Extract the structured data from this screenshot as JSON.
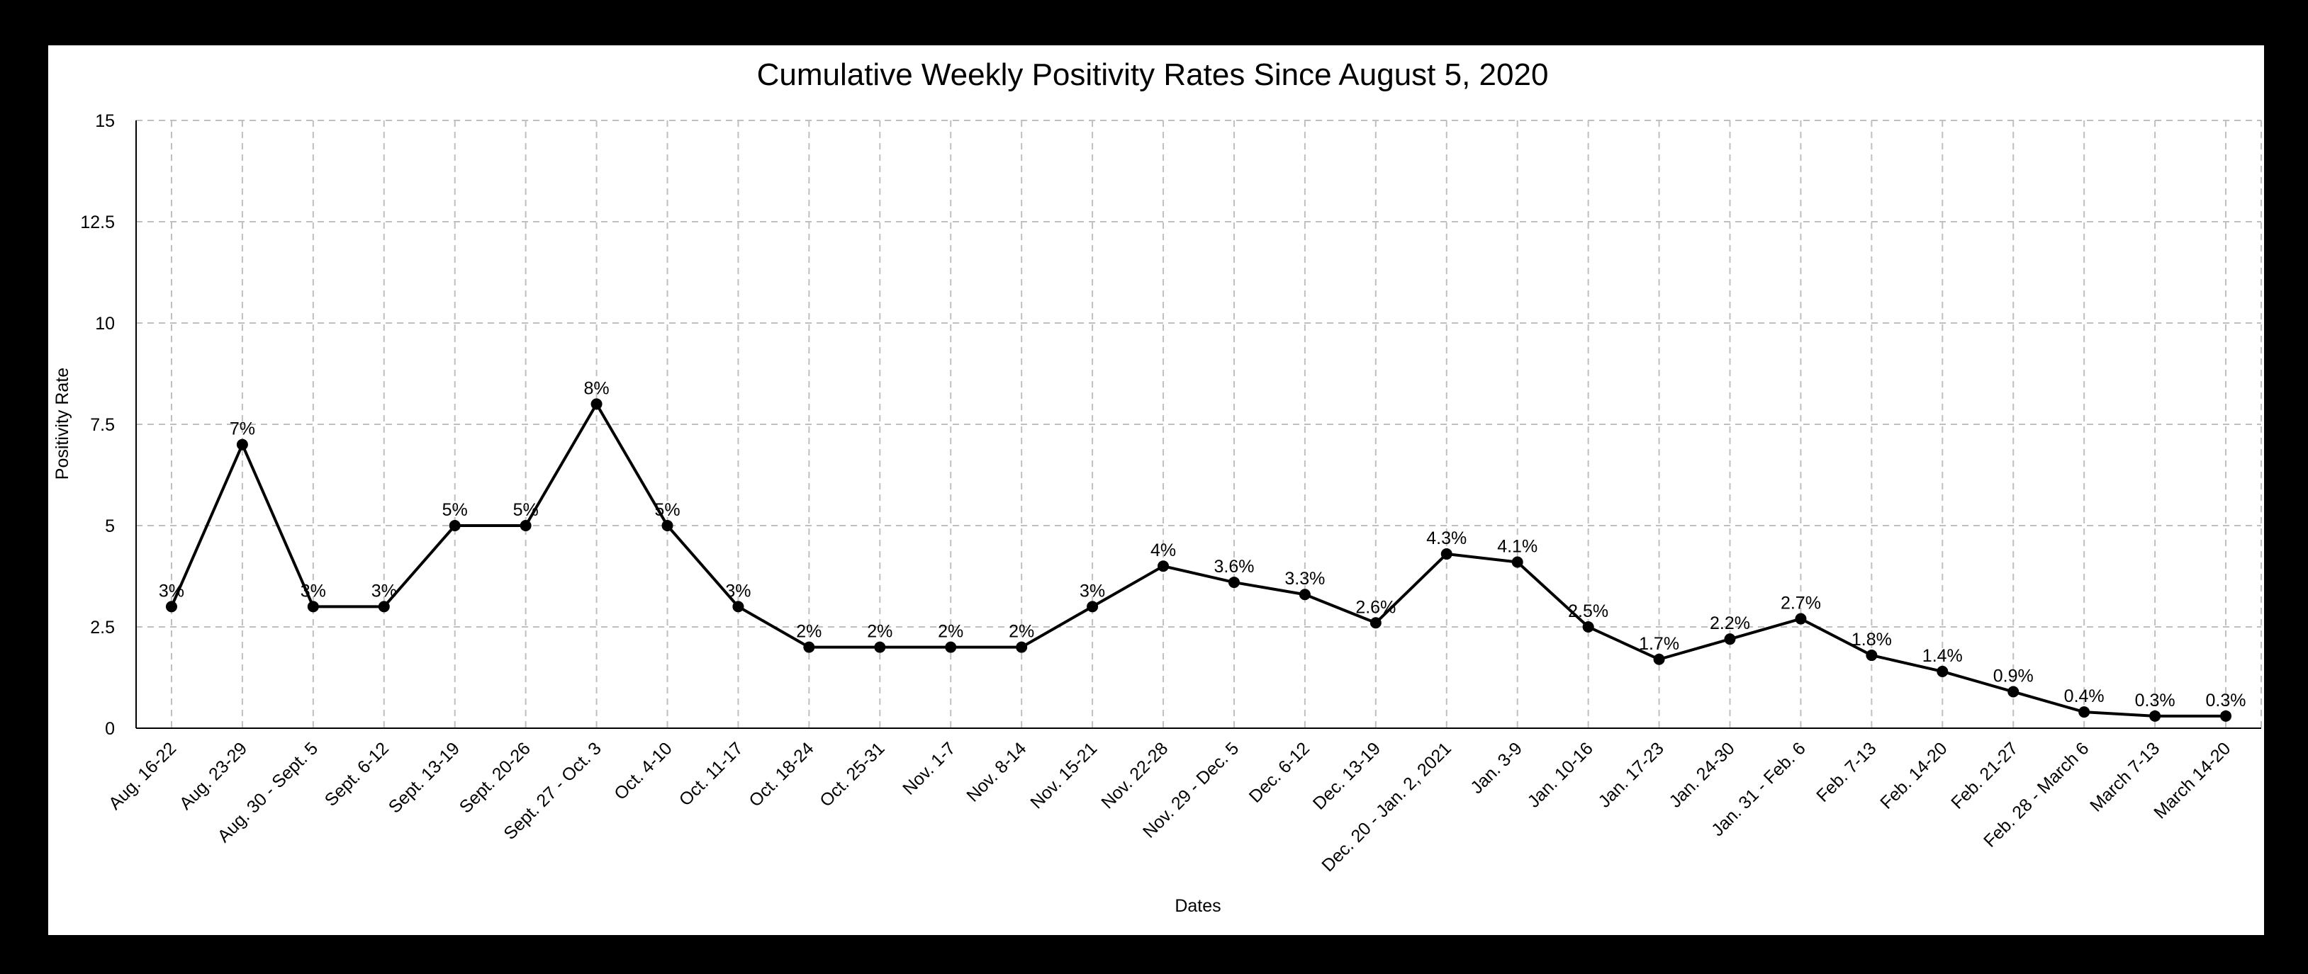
{
  "chart_data": {
    "type": "line",
    "title": "Cumulative Weekly Positivity Rates Since August 5, 2020",
    "xlabel": "Dates",
    "ylabel": "Positivity Rate",
    "ylim": [
      0,
      15
    ],
    "yticks": [
      "0",
      "2.5",
      "5",
      "7.5",
      "10",
      "12.5",
      "15"
    ],
    "ytick_values": [
      0,
      2.5,
      5,
      7.5,
      10,
      12.5,
      15
    ],
    "grid": true,
    "grid_style": "dashed",
    "legend": "none",
    "line_color": "#000000",
    "categories": [
      "Aug. 16-22",
      "Aug. 23-29",
      "Aug. 30 - Sept. 5",
      "Sept. 6-12",
      "Sept. 13-19",
      "Sept. 20-26",
      "Sept. 27 - Oct. 3",
      "Oct. 4-10",
      "Oct. 11-17",
      "Oct. 18-24",
      "Oct. 25-31",
      "Nov. 1-7",
      "Nov. 8-14",
      "Nov. 15-21",
      "Nov. 22-28",
      "Nov. 29 - Dec. 5",
      "Dec. 6-12",
      "Dec. 13-19",
      "Dec. 20 - Jan. 2, 2021",
      "Jan. 3-9",
      "Jan. 10-16",
      "Jan. 17-23",
      "Jan. 24-30",
      "Jan. 31 - Feb. 6",
      "Feb. 7-13",
      "Feb. 14-20",
      "Feb. 21-27",
      "Feb. 28 - March 6",
      "March 7-13",
      "March 14-20"
    ],
    "values": [
      3,
      7,
      3,
      3,
      5,
      5,
      8,
      5,
      3,
      2,
      2,
      2,
      2,
      3,
      4,
      3.6,
      3.3,
      2.6,
      4.3,
      4.1,
      2.5,
      1.7,
      2.2,
      2.7,
      1.8,
      1.4,
      0.9,
      0.4,
      0.3,
      0.3
    ],
    "data_labels": [
      "3%",
      "7%",
      "3%",
      "3%",
      "5%",
      "5%",
      "8%",
      "5%",
      "3%",
      "2%",
      "2%",
      "2%",
      "2%",
      "3%",
      "4%",
      "3.6%",
      "3.3%",
      "2.6%",
      "4.3%",
      "4.1%",
      "2.5%",
      "1.7%",
      "2.2%",
      "2.7%",
      "1.8%",
      "1.4%",
      "0.9%",
      "0.4%",
      "0.3%",
      "0.3%"
    ]
  }
}
